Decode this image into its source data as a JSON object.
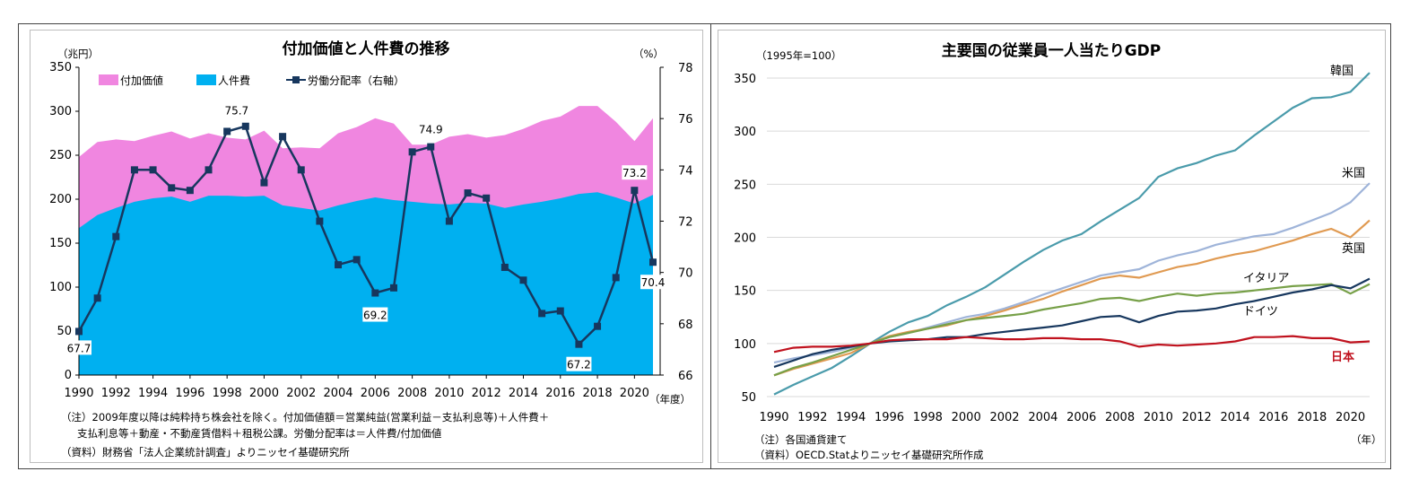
{
  "chart_data": [
    {
      "type": "area",
      "title": "付加価値と人件費の推移",
      "left_unit": "（兆円）",
      "right_unit": "（%）",
      "x_unit": "（年度）",
      "x": [
        1990,
        1991,
        1992,
        1993,
        1994,
        1995,
        1996,
        1997,
        1998,
        1999,
        2000,
        2001,
        2002,
        2003,
        2004,
        2005,
        2006,
        2007,
        2008,
        2009,
        2010,
        2011,
        2012,
        2013,
        2014,
        2015,
        2016,
        2017,
        2018,
        2019,
        2020,
        2021
      ],
      "x_ticks": [
        "1990",
        "1992",
        "1994",
        "1996",
        "1998",
        "2000",
        "2002",
        "2004",
        "2006",
        "2008",
        "2010",
        "2012",
        "2014",
        "2016",
        "2018",
        "2020"
      ],
      "ylim_left": [
        0,
        350
      ],
      "y_ticks_left": [
        "0",
        "50",
        "100",
        "150",
        "200",
        "250",
        "300",
        "350"
      ],
      "ylim_right": [
        66,
        78
      ],
      "y_ticks_right": [
        "66",
        "68",
        "70",
        "72",
        "74",
        "76",
        "78"
      ],
      "legend": [
        "付加価値",
        "人件費",
        "労働分配率（右軸）"
      ],
      "series": [
        {
          "name": "付加価値",
          "axis": "left",
          "color": "#f086e0",
          "values": [
            248,
            265,
            268,
            266,
            272,
            277,
            269,
            275,
            270,
            268,
            278,
            258,
            259,
            258,
            275,
            282,
            292,
            286,
            262,
            262,
            271,
            274,
            270,
            273,
            280,
            289,
            294,
            306,
            306,
            288,
            266,
            292
          ]
        },
        {
          "name": "人件費",
          "axis": "left",
          "color": "#00b0f0",
          "values": [
            167,
            182,
            190,
            197,
            201,
            203,
            197,
            204,
            204,
            203,
            204,
            193,
            190,
            187,
            193,
            198,
            202,
            199,
            197,
            195,
            194,
            196,
            195,
            190,
            194,
            197,
            201,
            206,
            208,
            202,
            195,
            205
          ]
        },
        {
          "name": "労働分配率（右軸）",
          "axis": "right",
          "color": "#17375e",
          "values": [
            67.7,
            69.0,
            71.4,
            74.0,
            74.0,
            73.3,
            73.2,
            74.0,
            75.5,
            75.7,
            73.5,
            75.3,
            74.0,
            72.0,
            70.3,
            70.5,
            69.2,
            69.4,
            74.7,
            74.9,
            72.0,
            73.1,
            72.9,
            70.2,
            69.7,
            68.4,
            68.5,
            67.2,
            67.9,
            69.8,
            73.2,
            70.4
          ]
        }
      ],
      "annotations": [
        {
          "year": 1990,
          "text": "67.7"
        },
        {
          "year": 1999,
          "text": "75.7"
        },
        {
          "year": 2006,
          "text": "69.2"
        },
        {
          "year": 2009,
          "text": "74.9"
        },
        {
          "year": 2017,
          "text": "67.2"
        },
        {
          "year": 2020,
          "text": "73.2"
        },
        {
          "year": 2021,
          "text": "70.4"
        }
      ],
      "notes": [
        "（注）2009年度以降は純粋持ち株会社を除く。付加価値額＝営業純益(営業利益－支払利息等)＋人件費＋",
        "支払利息等＋動産・不動産賃借料＋租税公課。労働分配率は＝人件費/付加価値",
        "（資料）財務省「法人企業統計調査」よりニッセイ基礎研究所"
      ]
    },
    {
      "type": "line",
      "title": "主要国の従業員一人当たりGDP",
      "y_unit": "（1995年=100）",
      "x_unit": "（年）",
      "x": [
        1990,
        1991,
        1992,
        1993,
        1994,
        1995,
        1996,
        1997,
        1998,
        1999,
        2000,
        2001,
        2002,
        2003,
        2004,
        2005,
        2006,
        2007,
        2008,
        2009,
        2010,
        2011,
        2012,
        2013,
        2014,
        2015,
        2016,
        2017,
        2018,
        2019,
        2020,
        2021
      ],
      "x_ticks": [
        "1990",
        "1992",
        "1994",
        "1996",
        "1998",
        "2000",
        "2002",
        "2004",
        "2006",
        "2008",
        "2010",
        "2012",
        "2014",
        "2016",
        "2018",
        "2020"
      ],
      "ylim": [
        50,
        350
      ],
      "y_ticks": [
        "50",
        "100",
        "150",
        "200",
        "250",
        "300",
        "350"
      ],
      "grid": true,
      "series": [
        {
          "name": "韓国",
          "color": "#4a9bab",
          "values": [
            52,
            61,
            69,
            77,
            88,
            100,
            111,
            120,
            126,
            136,
            144,
            153,
            165,
            177,
            188,
            197,
            203,
            215,
            226,
            237,
            257,
            265,
            270,
            277,
            282,
            296,
            309,
            322,
            331,
            332,
            337,
            355
          ]
        },
        {
          "name": "米国",
          "color": "#9fb4d9",
          "values": [
            82,
            86,
            89,
            92,
            96,
            100,
            106,
            110,
            115,
            120,
            125,
            128,
            133,
            139,
            146,
            152,
            158,
            164,
            167,
            170,
            178,
            183,
            187,
            193,
            197,
            201,
            203,
            209,
            216,
            223,
            233,
            251
          ]
        },
        {
          "name": "英国",
          "color": "#e09a52",
          "values": [
            70,
            76,
            81,
            86,
            91,
            100,
            107,
            111,
            114,
            117,
            122,
            126,
            131,
            137,
            142,
            149,
            155,
            161,
            164,
            162,
            167,
            172,
            175,
            180,
            184,
            187,
            192,
            197,
            203,
            208,
            200,
            216
          ]
        },
        {
          "name": "イタリア",
          "color": "#77a048",
          "values": [
            70,
            77,
            82,
            88,
            94,
            100,
            106,
            110,
            114,
            118,
            122,
            124,
            126,
            128,
            132,
            135,
            138,
            142,
            143,
            140,
            144,
            147,
            145,
            147,
            148,
            150,
            152,
            154,
            155,
            156,
            147,
            156
          ]
        },
        {
          "name": "ドイツ",
          "color": "#17375e",
          "values": [
            78,
            84,
            90,
            94,
            97,
            100,
            102,
            103,
            104,
            106,
            106,
            109,
            111,
            113,
            115,
            117,
            121,
            125,
            126,
            120,
            126,
            130,
            131,
            133,
            137,
            140,
            144,
            148,
            151,
            155,
            152,
            161
          ]
        },
        {
          "name": "日本",
          "color": "#c0121e",
          "values": [
            92,
            96,
            97,
            97,
            98,
            100,
            103,
            104,
            104,
            104,
            106,
            105,
            104,
            104,
            105,
            105,
            104,
            104,
            102,
            97,
            99,
            98,
            99,
            100,
            102,
            106,
            106,
            107,
            105,
            105,
            101,
            102
          ]
        }
      ],
      "notes": [
        "（注）各国通貨建て",
        "（資料）OECD.Statよりニッセイ基礎研究所作成"
      ]
    }
  ]
}
